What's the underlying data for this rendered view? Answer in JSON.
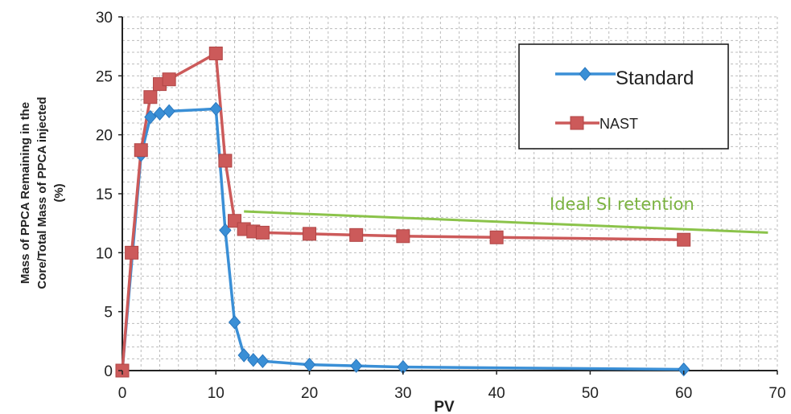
{
  "chart_data": {
    "type": "line",
    "title": "",
    "xlabel": "PV",
    "ylabel_lines": [
      "Mass of PPCA Remaining in the",
      "Core/Total Mass of PPCA injected",
      "(%)"
    ],
    "xlim": [
      0,
      70
    ],
    "ylim": [
      0,
      30
    ],
    "xticks": [
      0,
      10,
      20,
      30,
      40,
      50,
      60,
      70
    ],
    "yticks": [
      0,
      5,
      10,
      15,
      20,
      25,
      30
    ],
    "grid": true,
    "legend_position": "top-right",
    "series": [
      {
        "name": "Standard",
        "color": "#3a8fd6",
        "marker": "diamond",
        "x": [
          0,
          2,
          3,
          4,
          5,
          10,
          11,
          12,
          13,
          14,
          15,
          20,
          25,
          30,
          60
        ],
        "y": [
          0,
          18.3,
          21.5,
          21.8,
          22.0,
          22.2,
          11.9,
          4.1,
          1.3,
          0.9,
          0.8,
          0.5,
          0.4,
          0.3,
          0.1
        ]
      },
      {
        "name": "NAST",
        "color": "#cc5a5a",
        "marker": "square",
        "x": [
          0,
          1,
          2,
          3,
          4,
          5,
          10,
          11,
          12,
          13,
          14,
          15,
          20,
          25,
          30,
          40,
          60
        ],
        "y": [
          0,
          10.0,
          18.7,
          23.2,
          24.3,
          24.7,
          26.9,
          17.8,
          12.7,
          12.0,
          11.8,
          11.7,
          11.6,
          11.5,
          11.4,
          11.3,
          11.1
        ]
      }
    ],
    "annotations": [
      {
        "text": "Ideal SI retention",
        "color": "#8bc34a",
        "line_x": [
          13,
          69
        ],
        "line_y": [
          13.5,
          11.7
        ]
      }
    ]
  }
}
